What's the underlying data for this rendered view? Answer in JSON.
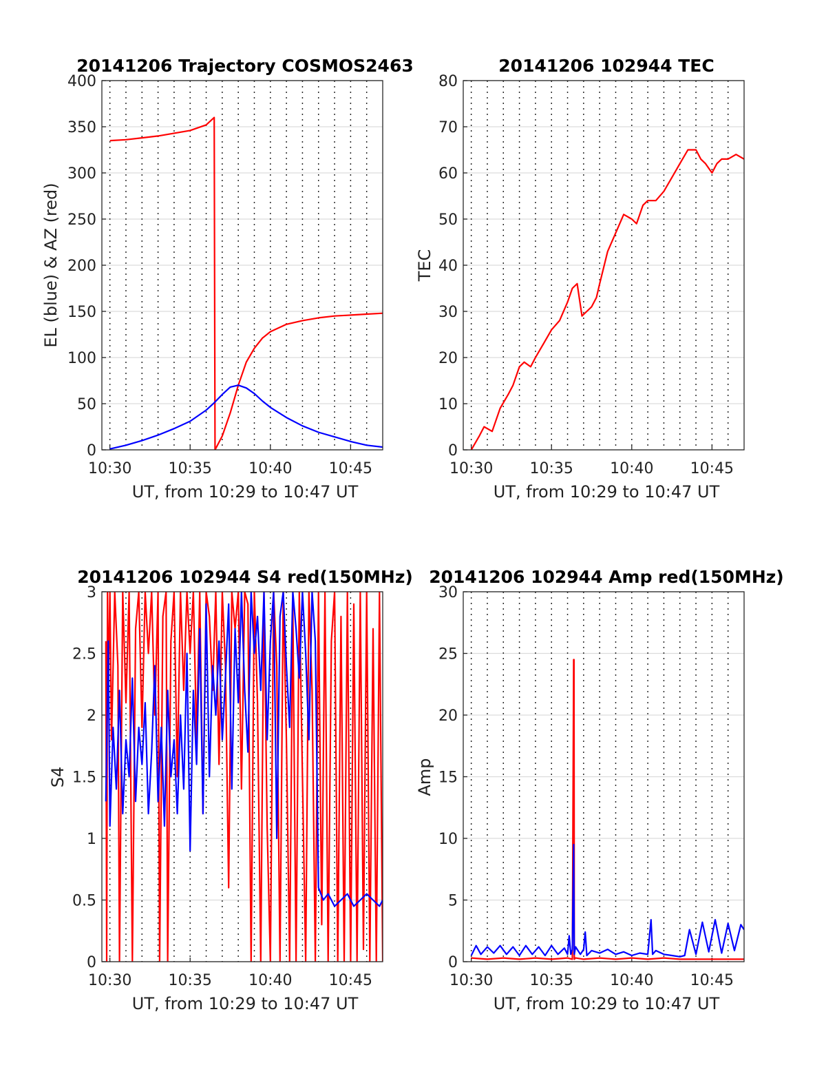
{
  "colors": {
    "red": "#ff0000",
    "blue": "#0000ff",
    "axis": "#262626",
    "grid": "#dcdcdc"
  },
  "chart_data": [
    {
      "type": "line",
      "title": "20141206 Trajectory COSMOS2463",
      "xlabel": "UT, from 10:29 to 10:47 UT",
      "ylabel": "EL (blue) & AZ (red)",
      "xlim": [
        10.5,
        28.0
      ],
      "ylim": [
        0,
        400
      ],
      "yticks": [
        0,
        50,
        100,
        150,
        200,
        250,
        300,
        350,
        400
      ],
      "xticks": [
        {
          "v": 11,
          "label": "10:30"
        },
        {
          "v": 16,
          "label": "10:35"
        },
        {
          "v": 21,
          "label": "10:40"
        },
        {
          "v": 26,
          "label": "10:45"
        }
      ],
      "vgrid_minutes": [
        11,
        12,
        13,
        14,
        15,
        16,
        17,
        18,
        19,
        20,
        21,
        22,
        23,
        24,
        25,
        26,
        27
      ],
      "series": [
        {
          "color": "red",
          "x": [
            11.0,
            12.0,
            13.0,
            14.0,
            15.0,
            16.0,
            17.0,
            17.5,
            17.55,
            18.0,
            18.5,
            19.0,
            19.5,
            20.0,
            20.5,
            21.0,
            22.0,
            23.0,
            24.0,
            25.0,
            26.0,
            27.0,
            28.0
          ],
          "y": [
            335,
            336,
            338,
            340,
            343,
            346,
            352,
            360,
            0,
            15,
            40,
            70,
            95,
            110,
            121,
            128,
            136,
            140,
            143,
            145,
            146,
            147,
            148
          ]
        },
        {
          "color": "blue",
          "x": [
            11.0,
            12.0,
            13.0,
            14.0,
            15.0,
            16.0,
            17.0,
            17.5,
            18.0,
            18.5,
            19.0,
            19.5,
            20.0,
            20.5,
            21.0,
            22.0,
            23.0,
            24.0,
            25.0,
            26.0,
            27.0,
            28.0
          ],
          "y": [
            1,
            5,
            10,
            16,
            23,
            31,
            43,
            51,
            60,
            68,
            70,
            67,
            61,
            53,
            46,
            35,
            26,
            19,
            14,
            9,
            5,
            3
          ]
        }
      ]
    },
    {
      "type": "line",
      "title": "20141206 102944 TEC",
      "xlabel": "UT, from 10:29 to 10:47 UT",
      "ylabel": "TEC",
      "xlim": [
        10.5,
        28.0
      ],
      "ylim": [
        0,
        80
      ],
      "yticks": [
        0,
        10,
        20,
        30,
        40,
        50,
        60,
        70,
        80
      ],
      "xticks": [
        {
          "v": 11,
          "label": "10:30"
        },
        {
          "v": 16,
          "label": "10:35"
        },
        {
          "v": 21,
          "label": "10:40"
        },
        {
          "v": 26,
          "label": "10:45"
        }
      ],
      "vgrid_minutes": [
        11,
        12,
        13,
        14,
        15,
        16,
        17,
        18,
        19,
        20,
        21,
        22,
        23,
        24,
        25,
        26,
        27
      ],
      "series": [
        {
          "color": "red",
          "x": [
            11.0,
            11.5,
            11.8,
            12.3,
            12.8,
            13.3,
            13.6,
            14.0,
            14.3,
            14.7,
            15.0,
            15.5,
            16.0,
            16.5,
            17.0,
            17.3,
            17.6,
            17.9,
            18.2,
            18.5,
            18.8,
            19.0,
            19.5,
            20.0,
            20.5,
            21.0,
            21.3,
            21.7,
            22.0,
            22.5,
            23.0,
            23.5,
            24.0,
            24.5,
            25.0,
            25.3,
            25.6,
            26.0,
            26.3,
            26.6,
            27.0,
            27.5,
            28.0
          ],
          "y": [
            0,
            3,
            5,
            4,
            9,
            12,
            14,
            18,
            19,
            18,
            20,
            23,
            26,
            28,
            32,
            35,
            36,
            29,
            30,
            31,
            33,
            36,
            43,
            47,
            51,
            50,
            49,
            53,
            54,
            54,
            56,
            59,
            62,
            65,
            65,
            63,
            62,
            60,
            62,
            63,
            63,
            64,
            63
          ]
        }
      ]
    },
    {
      "type": "line",
      "title": "20141206 102944 S4 red(150MHz)",
      "xlabel": "UT, from 10:29 to 10:47 UT",
      "ylabel": "S4",
      "xlim": [
        10.5,
        28.0
      ],
      "ylim": [
        0,
        3
      ],
      "yticks": [
        0,
        0.5,
        1,
        1.5,
        2,
        2.5,
        3
      ],
      "xticks": [
        {
          "v": 11,
          "label": "10:30"
        },
        {
          "v": 16,
          "label": "10:35"
        },
        {
          "v": 21,
          "label": "10:40"
        },
        {
          "v": 26,
          "label": "10:45"
        }
      ],
      "vgrid_minutes": [
        11,
        12,
        13,
        14,
        15,
        16,
        17,
        18,
        19,
        20,
        21,
        22,
        23,
        24,
        25,
        26,
        27
      ],
      "series": [
        {
          "color": "red",
          "x": [
            10.75,
            10.8,
            10.85,
            10.9,
            11.0,
            11.1,
            11.3,
            11.5,
            11.6,
            11.8,
            12.0,
            12.2,
            12.4,
            12.6,
            12.8,
            13.0,
            13.2,
            13.4,
            13.6,
            13.8,
            14.0,
            14.1,
            14.3,
            14.5,
            14.6,
            14.8,
            15.0,
            15.2,
            15.4,
            15.6,
            15.8,
            16.0,
            16.2,
            16.4,
            16.6,
            16.8,
            17.0,
            17.2,
            17.4,
            17.6,
            17.8,
            18.0,
            18.2,
            18.4,
            18.6,
            18.8,
            19.0,
            19.2,
            19.4,
            19.6,
            19.8,
            20.0,
            20.2,
            20.4,
            20.6,
            20.8,
            21.0,
            21.2,
            21.4,
            21.6,
            21.8,
            22.0,
            22.2,
            22.4,
            22.6,
            22.8,
            23.0,
            23.2,
            23.4,
            23.6,
            23.8,
            24.0,
            24.2,
            24.4,
            24.6,
            24.8,
            25.0,
            25.2,
            25.4,
            25.6,
            25.8,
            26.0,
            26.2,
            26.4,
            26.6,
            26.8,
            27.0,
            27.2,
            27.4,
            27.6,
            27.8,
            28.0
          ],
          "y": [
            2.6,
            0.0,
            3.0,
            2.2,
            3.0,
            1.8,
            3.0,
            2.4,
            0.0,
            3.0,
            2.1,
            3.0,
            0.0,
            2.7,
            3.0,
            1.9,
            3.0,
            2.5,
            3.0,
            2.0,
            3.0,
            0.0,
            2.8,
            3.0,
            0.0,
            2.6,
            3.0,
            1.5,
            3.0,
            2.2,
            3.0,
            2.5,
            3.0,
            1.8,
            3.0,
            1.2,
            3.0,
            2.8,
            2.2,
            3.0,
            1.6,
            3.0,
            2.4,
            0.6,
            3.0,
            2.7,
            3.0,
            1.4,
            3.0,
            2.9,
            0.0,
            3.0,
            2.1,
            0.0,
            3.0,
            1.1,
            0.0,
            3.0,
            2.4,
            0.0,
            3.0,
            1.8,
            0.0,
            2.9,
            0.0,
            3.0,
            1.5,
            0.0,
            3.0,
            2.2,
            0.0,
            3.0,
            0.3,
            3.0,
            0.0,
            2.6,
            3.0,
            0.0,
            2.8,
            0.0,
            3.0,
            0.0,
            2.9,
            0.0,
            3.0,
            0.1,
            3.0,
            0.0,
            2.7,
            0.0,
            3.0,
            0.0
          ]
        },
        {
          "color": "blue",
          "x": [
            10.75,
            10.9,
            11.0,
            11.2,
            11.4,
            11.6,
            11.8,
            12.0,
            12.2,
            12.4,
            12.6,
            12.8,
            13.0,
            13.2,
            13.4,
            13.6,
            13.8,
            14.0,
            14.2,
            14.4,
            14.6,
            14.8,
            15.0,
            15.2,
            15.4,
            15.6,
            15.8,
            16.0,
            16.2,
            16.4,
            16.6,
            16.8,
            17.0,
            17.2,
            17.4,
            17.6,
            17.8,
            18.0,
            18.2,
            18.4,
            18.6,
            18.8,
            19.0,
            19.2,
            19.4,
            19.6,
            19.8,
            20.0,
            20.2,
            20.4,
            20.6,
            20.8,
            21.0,
            21.2,
            21.4,
            21.6,
            21.8,
            22.0,
            22.2,
            22.4,
            22.6,
            22.8,
            23.0,
            23.2,
            23.4,
            23.6,
            23.8,
            24.0,
            24.3,
            24.6,
            25.0,
            25.4,
            25.8,
            26.2,
            26.6,
            27.0,
            27.4,
            27.8,
            28.0
          ],
          "y": [
            1.3,
            2.6,
            1.1,
            1.9,
            1.4,
            2.2,
            1.2,
            1.8,
            1.5,
            2.3,
            1.3,
            1.9,
            1.6,
            2.1,
            1.2,
            1.7,
            2.4,
            1.3,
            1.9,
            1.1,
            2.2,
            1.5,
            1.8,
            1.2,
            2.0,
            1.4,
            2.5,
            0.9,
            2.2,
            1.6,
            2.7,
            1.2,
            2.9,
            1.5,
            2.4,
            2.0,
            2.6,
            1.8,
            2.3,
            2.9,
            1.4,
            2.7,
            2.1,
            3.0,
            2.2,
            1.7,
            3.0,
            2.5,
            2.8,
            2.2,
            3.0,
            1.8,
            2.6,
            3.0,
            1.0,
            2.8,
            3.0,
            2.4,
            1.9,
            3.0,
            2.7,
            2.3,
            3.0,
            2.5,
            1.8,
            3.0,
            2.6,
            0.6,
            0.5,
            0.55,
            0.45,
            0.5,
            0.55,
            0.45,
            0.5,
            0.55,
            0.5,
            0.45,
            0.5
          ]
        }
      ]
    },
    {
      "type": "line",
      "title": "20141206 102944 Amp red(150MHz)",
      "xlabel": "UT, from 10:29 to 10:47 UT",
      "ylabel": "Amp",
      "xlim": [
        10.5,
        28.0
      ],
      "ylim": [
        0,
        30
      ],
      "yticks": [
        0,
        5,
        10,
        15,
        20,
        25,
        30
      ],
      "xticks": [
        {
          "v": 11,
          "label": "10:30"
        },
        {
          "v": 16,
          "label": "10:35"
        },
        {
          "v": 21,
          "label": "10:40"
        },
        {
          "v": 26,
          "label": "10:45"
        }
      ],
      "vgrid_minutes": [
        11,
        12,
        13,
        14,
        15,
        16,
        17,
        18,
        19,
        20,
        21,
        22,
        23,
        24,
        25,
        26,
        27
      ],
      "series": [
        {
          "color": "red",
          "x": [
            11.0,
            12.0,
            13.0,
            14.0,
            15.0,
            16.0,
            17.0,
            17.3,
            17.38,
            17.4,
            17.42,
            17.5,
            18.0,
            19.0,
            20.0,
            21.0,
            22.0,
            23.0,
            24.0,
            25.0,
            26.0,
            27.0,
            28.0
          ],
          "y": [
            0.3,
            0.2,
            0.3,
            0.2,
            0.3,
            0.2,
            0.3,
            0.2,
            24.5,
            24.5,
            0.2,
            0.3,
            0.2,
            0.3,
            0.2,
            0.3,
            0.2,
            0.3,
            0.2,
            0.2,
            0.2,
            0.2,
            0.2
          ]
        },
        {
          "color": "blue",
          "x": [
            11.0,
            11.3,
            11.6,
            12.0,
            12.4,
            12.8,
            13.2,
            13.6,
            14.0,
            14.4,
            14.8,
            15.2,
            15.6,
            16.0,
            16.4,
            16.8,
            17.0,
            17.1,
            17.2,
            17.3,
            17.38,
            17.42,
            17.5,
            17.8,
            18.0,
            18.1,
            18.2,
            18.5,
            19.0,
            19.5,
            20.0,
            20.5,
            21.0,
            21.5,
            22.0,
            22.2,
            22.3,
            22.5,
            23.0,
            23.5,
            24.0,
            24.3,
            24.6,
            25.0,
            25.4,
            25.8,
            26.2,
            26.6,
            27.0,
            27.4,
            27.8,
            28.0
          ],
          "y": [
            0.5,
            1.3,
            0.6,
            1.2,
            0.7,
            1.3,
            0.6,
            1.2,
            0.5,
            1.3,
            0.6,
            1.2,
            0.5,
            1.3,
            0.6,
            1.1,
            0.6,
            2.1,
            0.6,
            1.0,
            9.5,
            0.6,
            1.2,
            0.6,
            1.0,
            2.4,
            0.5,
            0.9,
            0.7,
            1.0,
            0.6,
            0.8,
            0.5,
            0.7,
            0.6,
            3.4,
            0.6,
            0.9,
            0.6,
            0.5,
            0.4,
            0.5,
            2.6,
            0.6,
            3.2,
            0.8,
            3.4,
            0.7,
            3.1,
            0.9,
            3.0,
            2.6
          ]
        }
      ]
    }
  ]
}
